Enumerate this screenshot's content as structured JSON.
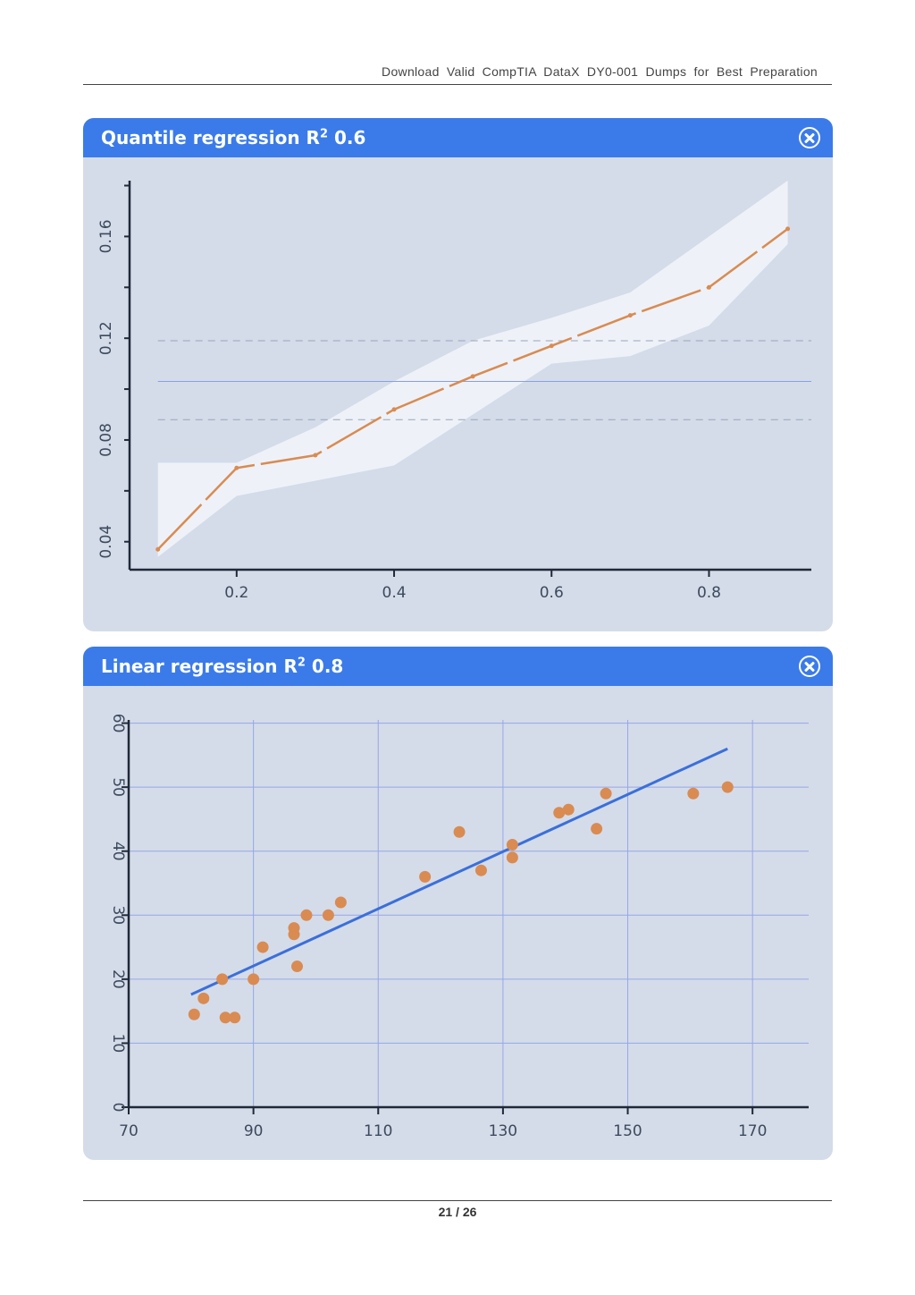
{
  "header": {
    "text": "Download Valid CompTIA DataX DY0-001 Dumps for Best Preparation"
  },
  "footer": {
    "page": "21",
    "total": "26"
  },
  "panels": {
    "quantile": {
      "title": "Quantile regression R",
      "sup": "2",
      "value": "0.6",
      "close_icon": "close-icon"
    },
    "linear": {
      "title": "Linear regression R",
      "sup": "2",
      "value": "0.8",
      "close_icon": "close-icon"
    }
  },
  "colors": {
    "header_bg": "#3b7be9",
    "plot_bg": "#d4dcea",
    "band": "#eef2f8",
    "points": "#d98b52",
    "line": "#3b6fd9",
    "ref_line": "#8a9ee3"
  },
  "chart_data": [
    {
      "type": "line",
      "title": "Quantile regression R² 0.6",
      "x": [
        0.1,
        0.2,
        0.3,
        0.4,
        0.5,
        0.6,
        0.7,
        0.8,
        0.9
      ],
      "series": [
        {
          "values": [
            0.037,
            0.069,
            0.074,
            0.092,
            0.105,
            0.117,
            0.129,
            0.14,
            0.163
          ],
          "lower": [
            0.034,
            0.058,
            0.064,
            0.07,
            0.09,
            0.11,
            0.113,
            0.125,
            0.157
          ],
          "upper": [
            0.071,
            0.071,
            0.085,
            0.103,
            0.119,
            0.128,
            0.138,
            0.16,
            0.182
          ]
        }
      ],
      "reference_lines": {
        "solid": 0.103,
        "dashed": [
          0.088,
          0.119
        ]
      },
      "xticks": [
        0.2,
        0.4,
        0.6,
        0.8
      ],
      "xtick_labels": [
        "0.2",
        "0.4",
        "0.6",
        "0.8"
      ],
      "yticks": [
        0.04,
        0.08,
        0.12,
        0.16
      ],
      "ytick_labels": [
        "0.04",
        "0.08",
        "0.12",
        "0.16"
      ],
      "minor_yticks": [
        0.04,
        0.06,
        0.08,
        0.1,
        0.12,
        0.14,
        0.16,
        0.18
      ],
      "xlim": [
        0.064,
        0.93
      ],
      "ylim": [
        0.029,
        0.183
      ],
      "xlabel": "",
      "ylabel": "",
      "grid": false
    },
    {
      "type": "scatter",
      "title": "Linear regression R² 0.8",
      "points": [
        [
          80.5,
          14.5
        ],
        [
          82,
          17
        ],
        [
          85,
          20
        ],
        [
          85.5,
          14
        ],
        [
          87,
          14
        ],
        [
          90,
          20
        ],
        [
          91.5,
          25
        ],
        [
          96.5,
          27
        ],
        [
          96.5,
          28
        ],
        [
          97,
          22
        ],
        [
          98.5,
          30
        ],
        [
          102,
          30
        ],
        [
          104,
          32
        ],
        [
          117.5,
          36
        ],
        [
          123,
          43
        ],
        [
          126.5,
          37
        ],
        [
          131.5,
          39
        ],
        [
          131.5,
          41
        ],
        [
          139,
          46
        ],
        [
          140.5,
          46.5
        ],
        [
          145,
          43.5
        ],
        [
          146.5,
          49
        ],
        [
          160.5,
          49
        ],
        [
          166,
          50
        ]
      ],
      "fit_line": {
        "x": [
          80,
          166
        ],
        "y": [
          17.6,
          56
        ]
      },
      "xticks": [
        70,
        90,
        110,
        130,
        150,
        170
      ],
      "xtick_labels": [
        "70",
        "90",
        "110",
        "130",
        "150",
        "170"
      ],
      "yticks": [
        0,
        10,
        20,
        30,
        40,
        50,
        60
      ],
      "ytick_labels": [
        "0",
        "10",
        "20",
        "30",
        "40",
        "50",
        "60"
      ],
      "xlim": [
        70,
        179
      ],
      "ylim": [
        0,
        60.5
      ],
      "xlabel": "",
      "ylabel": "",
      "grid": true
    }
  ]
}
